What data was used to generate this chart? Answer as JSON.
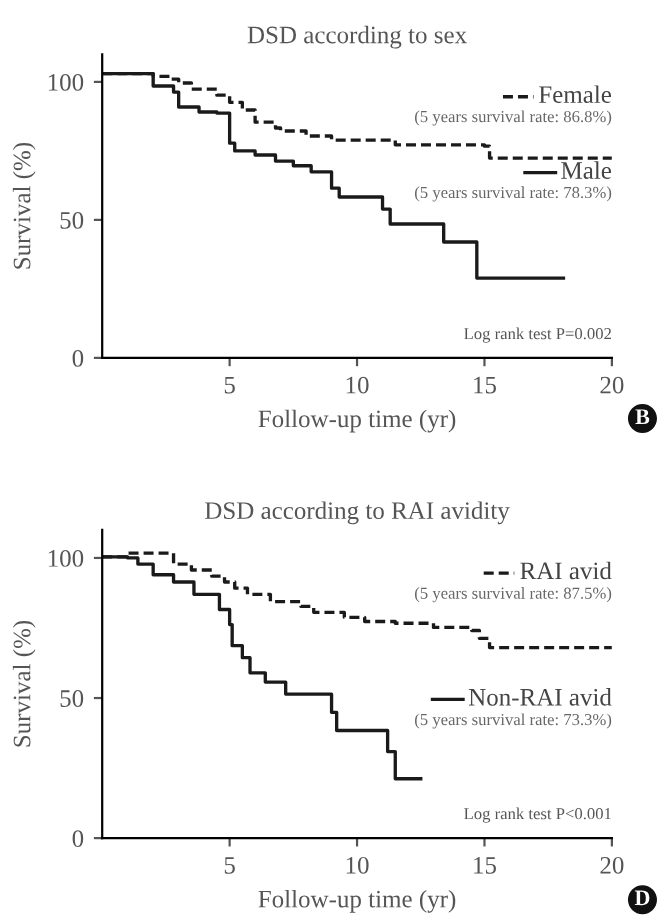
{
  "chart_data": [
    {
      "type": "step",
      "title": "DSD according to sex",
      "xlabel": "Follow-up time (yr)",
      "ylabel": "Survival (%)",
      "xlim": [
        0,
        20
      ],
      "ylim": [
        0,
        110
      ],
      "xticks": [
        5,
        10,
        15,
        20
      ],
      "yticks": [
        0,
        50,
        100
      ],
      "grid": false,
      "legend": "right",
      "marker": "none",
      "annotations": [
        "(5 years survival rate: 86.8%)",
        "(5 years survival rate: 78.3%)",
        "Log rank test P=0.002",
        "B"
      ],
      "series": [
        {
          "name": "Female",
          "color": "#1a1a1a",
          "line_style": "dashed",
          "x": [
            0,
            1.0,
            2.0,
            2.7,
            3.0,
            3.5,
            4.5,
            5.0,
            5.5,
            6.0,
            6.8,
            7.0,
            8.0,
            9.0,
            11.5,
            15.0,
            15.2,
            20.0
          ],
          "values": [
            103,
            103,
            102,
            101,
            99.6,
            97.4,
            95.2,
            92.6,
            89.8,
            85.4,
            83.3,
            82.2,
            80.4,
            78.9,
            77.2,
            76.7,
            72.4,
            72.4
          ]
        },
        {
          "name": "Male",
          "color": "#1a1a1a",
          "line_style": "solid",
          "x": [
            0,
            1.7,
            2.0,
            2.8,
            3.0,
            3.8,
            4.5,
            5.0,
            5.2,
            6.0,
            6.8,
            7.5,
            8.2,
            9.0,
            9.3,
            11.0,
            11.3,
            13.4,
            14.7,
            18.1
          ],
          "values": [
            103,
            103,
            98.5,
            96.3,
            90.9,
            89.1,
            88.7,
            77.8,
            75,
            73.5,
            71.3,
            69.6,
            67.4,
            61.5,
            58.3,
            53.9,
            48.5,
            42,
            28.9,
            28.9
          ]
        }
      ]
    },
    {
      "type": "step",
      "title": "DSD according to RAI avidity",
      "xlabel": "Follow-up time (yr)",
      "ylabel": "Survival (%)",
      "xlim": [
        0,
        20
      ],
      "ylim": [
        0,
        110
      ],
      "xticks": [
        5,
        10,
        15,
        20
      ],
      "yticks": [
        0,
        50,
        100
      ],
      "grid": false,
      "legend": "right",
      "marker": "none",
      "annotations": [
        "(5 years survival rate: 87.5%)",
        "(5 years survival rate: 73.3%)",
        "Log rank test P<0.001",
        "D"
      ],
      "series": [
        {
          "name": "RAI avid",
          "color": "#1a1a1a",
          "line_style": "dashed",
          "x": [
            0,
            1.0,
            2.7,
            2.8,
            3.5,
            4.3,
            4.8,
            5.2,
            5.7,
            6.6,
            7.8,
            8.3,
            9.5,
            10.3,
            11.5,
            13.0,
            14.5,
            14.8,
            15.2,
            20.0
          ],
          "values": [
            100.4,
            101.7,
            101.7,
            97.8,
            95.7,
            93.5,
            91.4,
            89.2,
            87,
            84.4,
            82.7,
            80.6,
            78.8,
            77.3,
            76.7,
            75.2,
            74.1,
            71.3,
            68,
            68
          ]
        },
        {
          "name": "Non-RAI avid",
          "color": "#1a1a1a",
          "line_style": "solid",
          "x": [
            0,
            1.0,
            1.4,
            2.0,
            2.8,
            3.6,
            4.6,
            5.0,
            5.1,
            5.5,
            5.8,
            6.4,
            7.2,
            9.0,
            9.2,
            11.2,
            11.5,
            12.5
          ],
          "values": [
            100.4,
            100,
            97.8,
            94,
            91.4,
            87,
            81.6,
            76.2,
            68.7,
            64.4,
            59,
            55.7,
            51.4,
            44.9,
            38.4,
            30.9,
            21.2,
            21.2
          ]
        }
      ]
    }
  ]
}
